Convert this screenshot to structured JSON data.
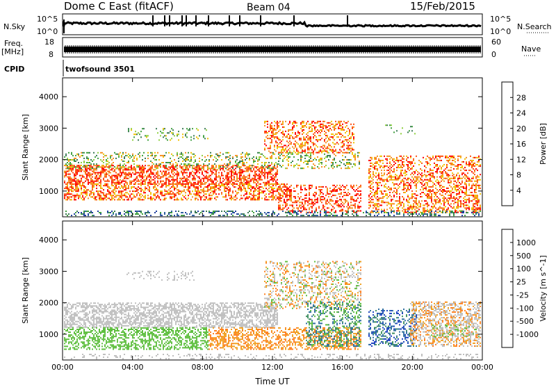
{
  "header": {
    "title": "Dome C East (fitACF)",
    "beam": "Beam 04",
    "date": "15/Feb/2015"
  },
  "status_panels": {
    "nsky_label": "N.Sky",
    "nsky_hi": "10^5",
    "nsky_lo": "10^0",
    "nsearch_label": "N.Search",
    "nsearch_hi": "10^5",
    "nsearch_lo": "10^0",
    "freq_label": "Freq.",
    "freq_unit": "[MHz]",
    "freq_hi": "18",
    "freq_lo": "8",
    "nave_label": "Nave",
    "nave_hi": "60",
    "nave_lo": "0",
    "cpid_label": "CPID",
    "cpid_value": "twofsound 3501"
  },
  "chart_data": [
    {
      "type": "heatmap",
      "panel": "power",
      "ylabel": "Slant Range [km]",
      "xlabel": "",
      "ylim": [
        180,
        4600
      ],
      "yticks": [
        "1000",
        "2000",
        "3000",
        "4000"
      ],
      "xticks": [
        "00:00",
        "04:00",
        "08:00",
        "12:00",
        "16:00",
        "20:00",
        "00:00"
      ],
      "colorbar": {
        "label": "Power [dB]",
        "ticks": [
          "28",
          "24",
          "20",
          "16",
          "12",
          "8",
          "4"
        ],
        "colors": [
          "#0000ff",
          "#1f3f9f",
          "#3a7a55",
          "#3f9f3f",
          "#8fd040",
          "#f0c000",
          "#f59020",
          "#ff5010",
          "#ff0000"
        ]
      }
    },
    {
      "type": "heatmap",
      "panel": "velocity",
      "ylabel": "Slant Range [km]",
      "xlabel": "Time UT",
      "ylim": [
        180,
        4600
      ],
      "yticks": [
        "1000",
        "2000",
        "3000",
        "4000"
      ],
      "xticks": [
        "00:00",
        "04:00",
        "08:00",
        "12:00",
        "16:00",
        "20:00",
        "00:00"
      ],
      "colorbar": {
        "label": "Velocity [m s^-1]",
        "ticks": [
          "1000",
          "500",
          "100",
          "25",
          "-25",
          "-100",
          "-500",
          "-1000"
        ],
        "colors": [
          "#1a3fbf",
          "#2f6fa0",
          "#3f8f60",
          "#5fbf3f",
          "#bfbfbf",
          "#c0c0c0",
          "#f0a020",
          "#ff6010",
          "#ff0000"
        ]
      }
    }
  ]
}
